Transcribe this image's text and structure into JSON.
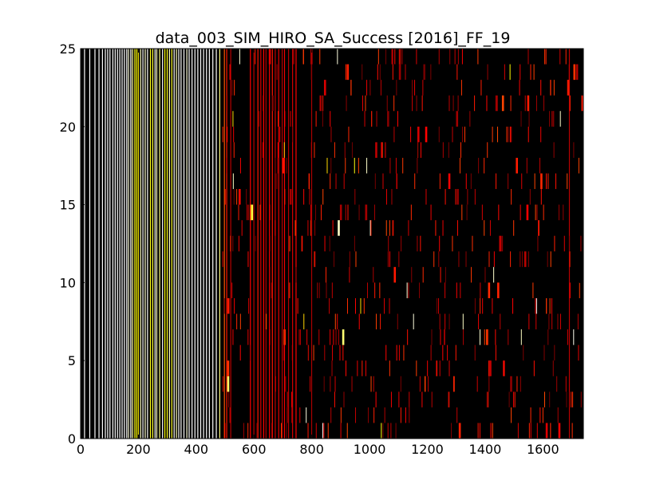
{
  "chart_data": {
    "type": "heatmap",
    "title": "data_003_SIM_HIRO_SA_Success [2016]_FF_19",
    "xlabel": "",
    "ylabel": "",
    "xlim": [
      0,
      1740
    ],
    "ylim": [
      0,
      25
    ],
    "xticks": [
      0,
      200,
      400,
      600,
      800,
      1000,
      1200,
      1400,
      1600
    ],
    "yticks": [
      0,
      5,
      10,
      15,
      20,
      25
    ],
    "xtick_labels": [
      "0",
      "200",
      "400",
      "600",
      "800",
      "1000",
      "1200",
      "1400",
      "1600"
    ],
    "ytick_labels": [
      "0",
      "5",
      "10",
      "15",
      "20",
      "25"
    ],
    "colormap": "hot",
    "colors": {
      "background": "#000000",
      "dark_red": "#8b0000",
      "red": "#c81400",
      "orange": "#ff9a1f",
      "yellow": "#ffd24a",
      "white": "#ffffff"
    },
    "full_columns": [
      {
        "x": 12,
        "c": 1.0
      },
      {
        "x": 30,
        "c": 1.0
      },
      {
        "x": 48,
        "c": 1.0
      },
      {
        "x": 62,
        "c": 1.0
      },
      {
        "x": 74,
        "c": 1.0
      },
      {
        "x": 84,
        "c": 1.0
      },
      {
        "x": 92,
        "c": 1.0
      },
      {
        "x": 100,
        "c": 1.0
      },
      {
        "x": 110,
        "c": 1.0
      },
      {
        "x": 118,
        "c": 1.0
      },
      {
        "x": 126,
        "c": 1.0
      },
      {
        "x": 134,
        "c": 1.0
      },
      {
        "x": 142,
        "c": 1.0
      },
      {
        "x": 150,
        "c": 1.0
      },
      {
        "x": 158,
        "c": 1.0
      },
      {
        "x": 164,
        "c": 0.97
      },
      {
        "x": 172,
        "c": 1.0
      },
      {
        "x": 178,
        "c": 0.93
      },
      {
        "x": 186,
        "c": 0.82
      },
      {
        "x": 192,
        "c": 0.8
      },
      {
        "x": 198,
        "c": 0.78
      },
      {
        "x": 206,
        "c": 0.95
      },
      {
        "x": 214,
        "c": 1.0
      },
      {
        "x": 222,
        "c": 0.96
      },
      {
        "x": 230,
        "c": 1.0
      },
      {
        "x": 240,
        "c": 0.82
      },
      {
        "x": 248,
        "c": 0.84
      },
      {
        "x": 256,
        "c": 1.0
      },
      {
        "x": 262,
        "c": 0.95
      },
      {
        "x": 272,
        "c": 0.9
      },
      {
        "x": 282,
        "c": 1.0
      },
      {
        "x": 290,
        "c": 0.8
      },
      {
        "x": 298,
        "c": 0.82
      },
      {
        "x": 306,
        "c": 0.95
      },
      {
        "x": 314,
        "c": 0.83
      },
      {
        "x": 322,
        "c": 1.0
      },
      {
        "x": 330,
        "c": 0.94
      },
      {
        "x": 338,
        "c": 1.0
      },
      {
        "x": 346,
        "c": 1.0
      },
      {
        "x": 356,
        "c": 1.0
      },
      {
        "x": 366,
        "c": 0.97
      },
      {
        "x": 374,
        "c": 1.0
      },
      {
        "x": 384,
        "c": 1.0
      },
      {
        "x": 394,
        "c": 1.0
      },
      {
        "x": 404,
        "c": 1.0
      },
      {
        "x": 414,
        "c": 1.0
      },
      {
        "x": 424,
        "c": 1.0
      },
      {
        "x": 434,
        "c": 1.0
      },
      {
        "x": 444,
        "c": 1.0
      },
      {
        "x": 456,
        "c": 1.0
      },
      {
        "x": 468,
        "c": 1.0
      },
      {
        "x": 480,
        "c": 0.9
      },
      {
        "x": 496,
        "c": 0.55
      },
      {
        "x": 504,
        "c": 0.45
      },
      {
        "x": 518,
        "c": 0.3
      },
      {
        "x": 586,
        "c": 0.42
      },
      {
        "x": 598,
        "c": 0.3
      },
      {
        "x": 612,
        "c": 0.45
      },
      {
        "x": 622,
        "c": 0.35
      },
      {
        "x": 632,
        "c": 0.42
      },
      {
        "x": 640,
        "c": 0.3
      },
      {
        "x": 652,
        "c": 0.4
      },
      {
        "x": 662,
        "c": 0.45
      },
      {
        "x": 672,
        "c": 0.32
      },
      {
        "x": 684,
        "c": 0.38
      },
      {
        "x": 696,
        "c": 0.3
      },
      {
        "x": 704,
        "c": 0.4
      },
      {
        "x": 718,
        "c": 0.3
      },
      {
        "x": 732,
        "c": 0.35
      },
      {
        "x": 744,
        "c": 0.42
      },
      {
        "x": 798,
        "c": 0.28
      },
      {
        "x": 1690,
        "c": 0.3
      }
    ],
    "random_seed": 20161903
  }
}
